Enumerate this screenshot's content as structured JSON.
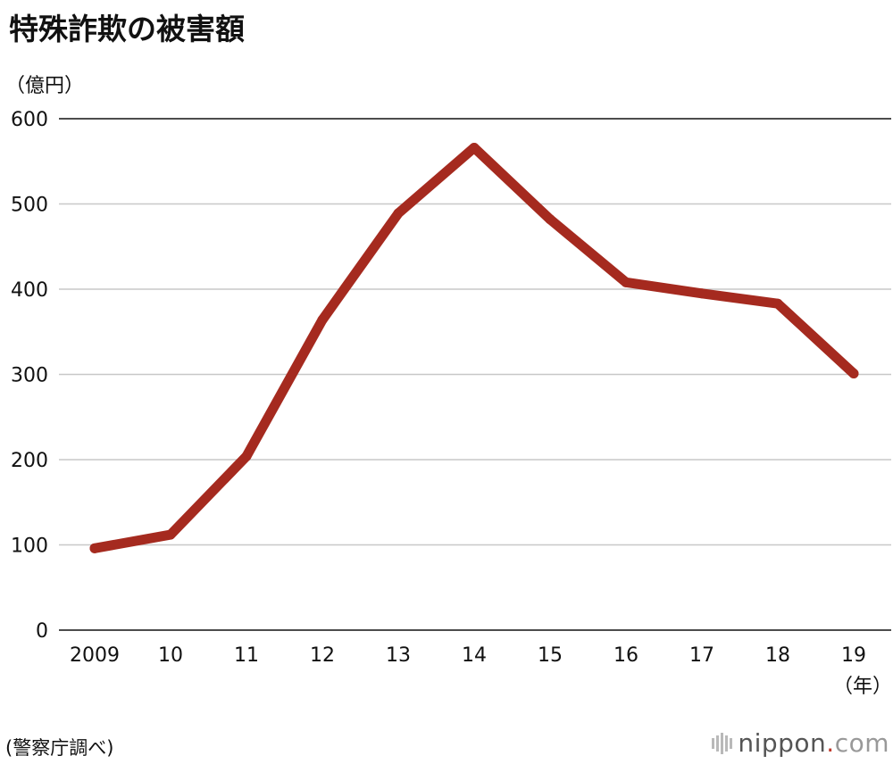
{
  "chart_data": {
    "type": "line",
    "title": "特殊詐欺の被害額",
    "ylabel": "（億円）",
    "xlabel": "（年）",
    "categories": [
      "2009",
      "10",
      "11",
      "12",
      "13",
      "14",
      "15",
      "16",
      "17",
      "18",
      "19"
    ],
    "series": [
      {
        "values": [
          96,
          112,
          204,
          364,
          489,
          566,
          482,
          408,
          395,
          383,
          301
        ]
      }
    ],
    "ylim": [
      0,
      600
    ],
    "yticks": [
      0,
      100,
      200,
      300,
      400,
      500,
      600
    ],
    "grid": true,
    "line_color": "#a52a1f"
  },
  "source": "(警察庁調べ)",
  "logo": {
    "name": "nippon",
    "dot": ".",
    "tld": "com"
  }
}
